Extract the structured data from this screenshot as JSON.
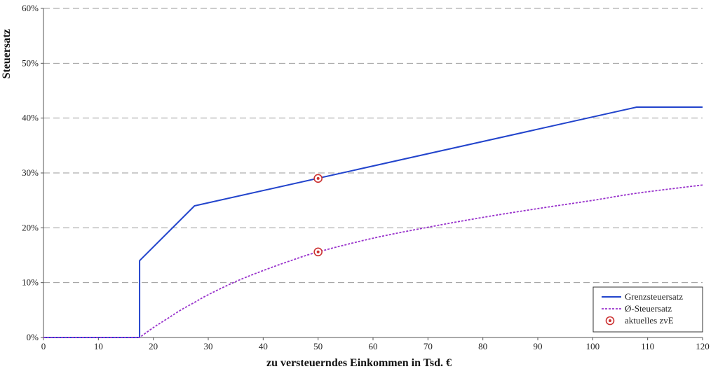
{
  "chart_data": {
    "type": "line",
    "title": "",
    "xlabel": "zu versteuerndes Einkommen in Tsd. €",
    "ylabel": "Steuersatz",
    "xlim": [
      0,
      120
    ],
    "ylim": [
      0,
      60
    ],
    "x_ticks": [
      0,
      10,
      20,
      30,
      40,
      50,
      60,
      70,
      80,
      90,
      100,
      110,
      120
    ],
    "y_ticks": [
      0,
      10,
      20,
      30,
      40,
      50,
      60
    ],
    "x_tick_labels": [
      "0",
      "10",
      "20",
      "30",
      "40",
      "50",
      "60",
      "70",
      "80",
      "90",
      "100",
      "110",
      "120"
    ],
    "y_tick_labels": [
      "0%",
      "10%",
      "20%",
      "30%",
      "40%",
      "50%",
      "60%"
    ],
    "y_unit": "percent",
    "grid": "horizontal dashed",
    "legend_position": "bottom-right",
    "series": [
      {
        "name": "Grenzsteuersatz",
        "style": "solid",
        "color": "#2244cc",
        "points": [
          [
            0,
            0
          ],
          [
            17.5,
            0
          ],
          [
            17.5,
            14
          ],
          [
            27.5,
            24
          ],
          [
            108,
            42
          ],
          [
            120,
            42
          ]
        ]
      },
      {
        "name": "Ø-Steuersatz",
        "style": "dotted",
        "color": "#9933cc",
        "points": [
          [
            0,
            0
          ],
          [
            17.5,
            0
          ],
          [
            20,
            1.8
          ],
          [
            22.5,
            3.4
          ],
          [
            25,
            5.0
          ],
          [
            27.5,
            6.4
          ],
          [
            30,
            7.8
          ],
          [
            35,
            10.2
          ],
          [
            40,
            12.2
          ],
          [
            45,
            14.0
          ],
          [
            50,
            15.6
          ],
          [
            60,
            18.1
          ],
          [
            70,
            20.1
          ],
          [
            80,
            21.9
          ],
          [
            90,
            23.5
          ],
          [
            100,
            25.0
          ],
          [
            108,
            26.3
          ],
          [
            120,
            27.8
          ]
        ]
      }
    ],
    "markers": [
      {
        "name": "aktuelles zvE",
        "color": "#cc3333",
        "points": [
          [
            50,
            29
          ],
          [
            50,
            15.6
          ]
        ]
      }
    ]
  }
}
